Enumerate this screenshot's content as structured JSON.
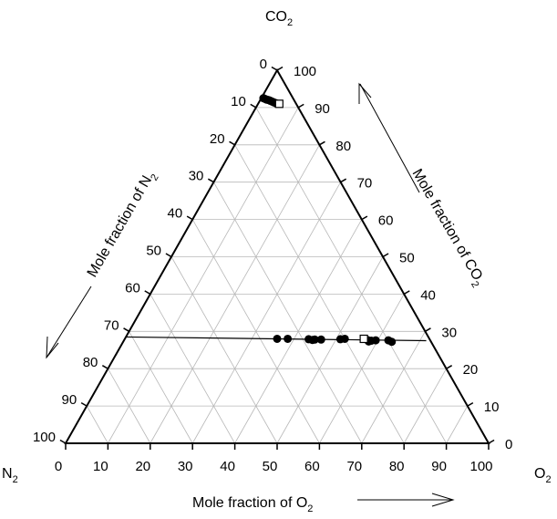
{
  "chart_data": {
    "type": "ternary-scatter",
    "vertices": {
      "top": {
        "label": "CO",
        "sub": "2"
      },
      "left": {
        "label": "N",
        "sub": "2"
      },
      "right": {
        "label": "O",
        "sub": "2"
      }
    },
    "axes": {
      "bottom": {
        "label": "Mole fraction of O",
        "sub": "2",
        "ticks": [
          0,
          10,
          20,
          30,
          40,
          50,
          60,
          70,
          80,
          90,
          100
        ]
      },
      "right": {
        "label": "Mole fraction of CO",
        "sub": "2",
        "ticks": [
          0,
          10,
          20,
          30,
          40,
          50,
          60,
          70,
          80,
          90,
          100
        ]
      },
      "left": {
        "label": "Mole fraction of N",
        "sub": "2",
        "ticks": [
          0,
          10,
          20,
          30,
          40,
          50,
          60,
          70,
          80,
          90,
          100
        ]
      }
    },
    "grid": true,
    "grid_step": 10,
    "series": [
      {
        "marker": "filled-circle",
        "points": [
          {
            "o2": 0.5,
            "co2": 92.5
          },
          {
            "o2": 1.0,
            "co2": 92.3
          },
          {
            "o2": 1.5,
            "co2": 92.1
          },
          {
            "o2": 2.0,
            "co2": 92.0
          },
          {
            "o2": 2.5,
            "co2": 91.8
          },
          {
            "o2": 3.0,
            "co2": 91.6
          },
          {
            "o2": 3.5,
            "co2": 91.4
          },
          {
            "o2": 4.0,
            "co2": 91.2
          },
          {
            "o2": 4.3,
            "co2": 91.1
          },
          {
            "o2": 36.0,
            "co2": 28.0
          },
          {
            "o2": 38.5,
            "co2": 28.0
          },
          {
            "o2": 43.5,
            "co2": 27.9
          },
          {
            "o2": 44.5,
            "co2": 27.7
          },
          {
            "o2": 45.0,
            "co2": 27.8
          },
          {
            "o2": 46.5,
            "co2": 27.8
          },
          {
            "o2": 51.0,
            "co2": 27.9
          },
          {
            "o2": 52.0,
            "co2": 28.0
          },
          {
            "o2": 57.5,
            "co2": 27.7
          },
          {
            "o2": 58.0,
            "co2": 27.3
          },
          {
            "o2": 58.5,
            "co2": 27.5
          },
          {
            "o2": 59.5,
            "co2": 27.6
          },
          {
            "o2": 62.5,
            "co2": 27.6
          },
          {
            "o2": 63.5,
            "co2": 27.2
          }
        ]
      },
      {
        "marker": "open-square",
        "points": [
          {
            "o2": 5.0,
            "co2": 91.0
          },
          {
            "o2": 56.5,
            "co2": 28.0
          }
        ]
      }
    ],
    "lines": [
      {
        "from": {
          "o2": 0.5,
          "co2": 92.5
        },
        "to": {
          "o2": 5.5,
          "co2": 91.0
        }
      },
      {
        "from": {
          "o2": 0.0,
          "co2": 28.5
        },
        "to": {
          "o2": 71.5,
          "co2": 27.5
        }
      }
    ]
  }
}
